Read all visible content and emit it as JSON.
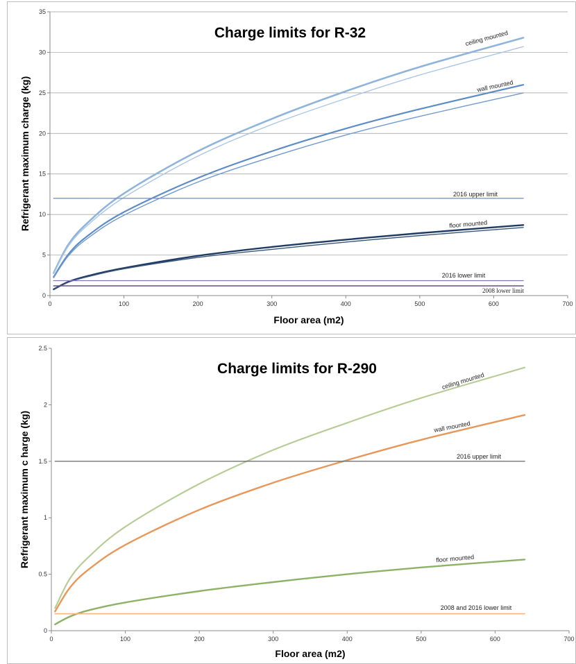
{
  "chart_data": [
    {
      "type": "line",
      "title": "Charge limits for R-32",
      "xlabel": "Floor area (m2)",
      "ylabel": "Refrigerant maximum charge (kg)",
      "xlim": [
        0,
        700
      ],
      "ylim": [
        0,
        35
      ],
      "xticks": [
        "0",
        "100",
        "200",
        "300",
        "400",
        "500",
        "600",
        "700"
      ],
      "yticks": [
        "0",
        "5",
        "10",
        "15",
        "20",
        "25",
        "30",
        "35"
      ],
      "grid": true,
      "colors": {
        "ceiling": "#8fb4dc",
        "ceiling_thin": "#a9c6e6",
        "wall": "#5b8cc4",
        "wall_thin": "#6f9bcf",
        "floor": "#1f3b63",
        "floor_thin": "#3a557a",
        "upper": "#7f8fd4",
        "lower2016": "#8573b8",
        "lower2008": "#6a4a8c"
      },
      "series": [
        {
          "name": "ceiling mounted",
          "x": [
            5,
            25,
            50,
            100,
            200,
            300,
            400,
            500,
            640
          ],
          "y": [
            2.8,
            6.3,
            8.9,
            12.6,
            17.8,
            21.8,
            25.2,
            28.2,
            31.8
          ]
        },
        {
          "name": "",
          "x": [
            5,
            25,
            50,
            100,
            200,
            300,
            400,
            500,
            640
          ],
          "y": [
            2.7,
            6.1,
            8.6,
            12.1,
            17.2,
            21.1,
            24.3,
            27.2,
            30.7
          ]
        },
        {
          "name": "wall mounted",
          "x": [
            5,
            25,
            50,
            100,
            200,
            300,
            400,
            500,
            640
          ],
          "y": [
            2.3,
            5.1,
            7.3,
            10.3,
            14.5,
            17.8,
            20.6,
            23.0,
            26.0
          ]
        },
        {
          "name": "",
          "x": [
            5,
            25,
            50,
            100,
            200,
            300,
            400,
            500,
            640
          ],
          "y": [
            2.2,
            4.9,
            7.0,
            9.9,
            14.0,
            17.1,
            19.8,
            22.1,
            25.0
          ]
        },
        {
          "name": "floor mounted",
          "x": [
            5,
            25,
            50,
            100,
            200,
            300,
            400,
            500,
            640
          ],
          "y": [
            0.77,
            1.7,
            2.4,
            3.4,
            4.9,
            6.0,
            6.9,
            7.7,
            8.7
          ]
        },
        {
          "name": "",
          "x": [
            5,
            25,
            50,
            100,
            200,
            300,
            400,
            500,
            640
          ],
          "y": [
            0.74,
            1.65,
            2.3,
            3.3,
            4.7,
            5.7,
            6.6,
            7.4,
            8.4
          ]
        },
        {
          "name": "2016 upper limit",
          "x": [
            5,
            640
          ],
          "y": [
            12,
            12
          ]
        },
        {
          "name": "2016 lower limit",
          "x": [
            5,
            640
          ],
          "y": [
            1.84,
            1.84
          ]
        },
        {
          "name": "2008 lower limit",
          "x": [
            5,
            640
          ],
          "y": [
            1.2,
            1.2
          ]
        }
      ]
    },
    {
      "type": "line",
      "title": "Charge limits for R-290",
      "xlabel": "Floor area (m2)",
      "ylabel": "Refrigerant maximum  c harge (kg)",
      "xlim": [
        0,
        700
      ],
      "ylim": [
        0,
        2.5
      ],
      "xticks": [
        "0",
        "100",
        "200",
        "300",
        "400",
        "500",
        "600",
        "700"
      ],
      "yticks": [
        "0",
        "0.5",
        "1",
        "1.5",
        "2",
        "2.5"
      ],
      "grid": false,
      "colors": {
        "ceiling": "#b8cc96",
        "wall": "#e8975b",
        "floor": "#8cb265",
        "upper": "#707070",
        "lower": "#f3b77d"
      },
      "series": [
        {
          "name": "ceiling mounted",
          "x": [
            5,
            25,
            50,
            100,
            200,
            300,
            400,
            500,
            640
          ],
          "y": [
            0.2,
            0.46,
            0.65,
            0.92,
            1.3,
            1.6,
            1.84,
            2.06,
            2.33
          ]
        },
        {
          "name": "wall mounted",
          "x": [
            5,
            25,
            50,
            100,
            200,
            300,
            400,
            500,
            640
          ],
          "y": [
            0.17,
            0.38,
            0.54,
            0.76,
            1.07,
            1.31,
            1.51,
            1.69,
            1.91
          ]
        },
        {
          "name": "floor mounted",
          "x": [
            5,
            25,
            50,
            100,
            200,
            300,
            400,
            500,
            640
          ],
          "y": [
            0.056,
            0.125,
            0.18,
            0.25,
            0.35,
            0.43,
            0.5,
            0.56,
            0.63
          ]
        },
        {
          "name": "2016 upper limit",
          "x": [
            5,
            640
          ],
          "y": [
            1.5,
            1.5
          ]
        },
        {
          "name": "2008 and 2016 lower limit",
          "x": [
            5,
            640
          ],
          "y": [
            0.15,
            0.15
          ]
        }
      ]
    }
  ],
  "annotations1": {
    "ceiling": "ceiling mounted",
    "wall": "wall mounted",
    "floor": "floor mounted",
    "upper": "2016 upper limit",
    "lower2016": "2016 lower limit",
    "lower2008": "2008 lower limit"
  },
  "annotations2": {
    "ceiling": "ceiling mounted",
    "wall": "wall mounted",
    "upper": "2016 upper limit",
    "floor": "floor mounted",
    "lower": "2008 and 2016 lower limit"
  }
}
